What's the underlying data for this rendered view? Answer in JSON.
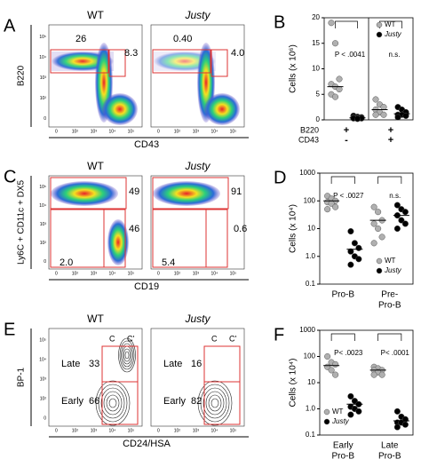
{
  "flow_ticks": [
    "0",
    "10²",
    "10³",
    "10⁴",
    "10⁵"
  ],
  "flow_rows": [
    {
      "label": "A",
      "x_label": "CD43",
      "y_label": "B220",
      "plots": [
        {
          "title": "WT",
          "gates": [
            "26",
            "8.3"
          ]
        },
        {
          "title": "Justy",
          "gates": [
            "0.40",
            "4.0"
          ]
        }
      ]
    },
    {
      "label": "C",
      "x_label": "CD19",
      "y_label": "Ly6C + CD11c + DX5",
      "plots": [
        {
          "title": "WT",
          "gates": [
            "49",
            "46",
            "2.0"
          ]
        },
        {
          "title": "Justy",
          "gates": [
            "91",
            "0.6",
            "5.4"
          ]
        }
      ]
    },
    {
      "label": "E",
      "x_label": "CD24/HSA",
      "y_label": "BP-1",
      "plots": [
        {
          "title": "WT",
          "gates": [
            "C",
            "C'",
            "Late",
            "33",
            "Early",
            "66"
          ]
        },
        {
          "title": "Justy",
          "gates": [
            "C",
            "C'",
            "Late",
            "16",
            "Early",
            "82"
          ]
        }
      ]
    }
  ],
  "chart_data": [
    {
      "type": "dotplot",
      "label": "B",
      "y_label": "Cells (x 10⁶)",
      "log": false,
      "ylim": [
        0,
        20
      ],
      "yticks": [
        0,
        5,
        10,
        15,
        20
      ],
      "categories": [
        null,
        null
      ],
      "markers": [
        {
          "name": "B220",
          "signs": [
            "+",
            "+"
          ]
        },
        {
          "name": "CD43",
          "signs": [
            "-",
            "+"
          ]
        }
      ],
      "annotations": [
        "P < .0041",
        "n.s."
      ],
      "legend": "upper right",
      "series": [
        {
          "name": "WT",
          "color": "#b0b0b0",
          "values": [
            [
              19,
              15,
              8,
              7,
              6.5,
              6,
              5,
              4.5
            ],
            [
              4,
              3,
              2.5,
              2,
              1.5,
              1,
              1
            ]
          ],
          "means": [
            6.5,
            2
          ]
        },
        {
          "name": "Justy",
          "color": "#000000",
          "values": [
            [
              0.8,
              0.6,
              0.5,
              0.5,
              0.4,
              0.3,
              0.3,
              0.2
            ],
            [
              2.5,
              2,
              1.5,
              1,
              1,
              0.8,
              0.5
            ]
          ],
          "means": [
            0.4,
            1.2
          ]
        }
      ]
    },
    {
      "type": "dotplot",
      "label": "D",
      "y_label": "Cells (x 10⁴)",
      "log": true,
      "ylim": [
        0.1,
        1000
      ],
      "yticks": [
        0.1,
        {
          "value": 1,
          "label": "1.0"
        },
        10,
        100,
        1000
      ],
      "categories": [
        [
          "Pro-B"
        ],
        [
          "Pre-",
          "Pro-B"
        ]
      ],
      "annotations": [
        "P < .0027",
        "n.s."
      ],
      "legend": "lower right",
      "series": [
        {
          "name": "WT",
          "color": "#b0b0b0",
          "values": [
            [
              150,
              120,
              100,
              90,
              80,
              60,
              50
            ],
            [
              60,
              40,
              20,
              15,
              10,
              5,
              3
            ]
          ],
          "means": [
            100,
            20
          ]
        },
        {
          "name": "Justy",
          "color": "#000000",
          "values": [
            [
              8,
              3,
              2,
              1.5,
              1,
              0.8,
              0.5
            ],
            [
              70,
              50,
              40,
              30,
              20,
              15,
              10
            ]
          ],
          "means": [
            1.8,
            30
          ]
        }
      ]
    },
    {
      "type": "dotplot",
      "label": "F",
      "y_label": "Cells (x 10⁴)",
      "log": true,
      "ylim": [
        0.1,
        1000
      ],
      "yticks": [
        0.1,
        {
          "value": 1,
          "label": "1.0"
        },
        10,
        100,
        1000
      ],
      "categories": [
        [
          "Early",
          "Pro-B"
        ],
        [
          "Late",
          "Pro-B"
        ]
      ],
      "annotations": [
        "P< .0023",
        "P< .0001"
      ],
      "legend": "lower left",
      "series": [
        {
          "name": "WT",
          "color": "#b0b0b0",
          "values": [
            [
              100,
              60,
              50,
              40,
              30,
              20
            ],
            [
              40,
              35,
              30,
              30,
              25,
              20,
              20
            ]
          ],
          "means": [
            45,
            30
          ]
        },
        {
          "name": "Justy",
          "color": "#000000",
          "values": [
            [
              3,
              2,
              1.5,
              1.2,
              1,
              0.8,
              0.6
            ],
            [
              0.8,
              0.5,
              0.4,
              0.3,
              0.3,
              0.25,
              0.2
            ]
          ],
          "means": [
            1.5,
            0.35
          ]
        }
      ]
    }
  ]
}
